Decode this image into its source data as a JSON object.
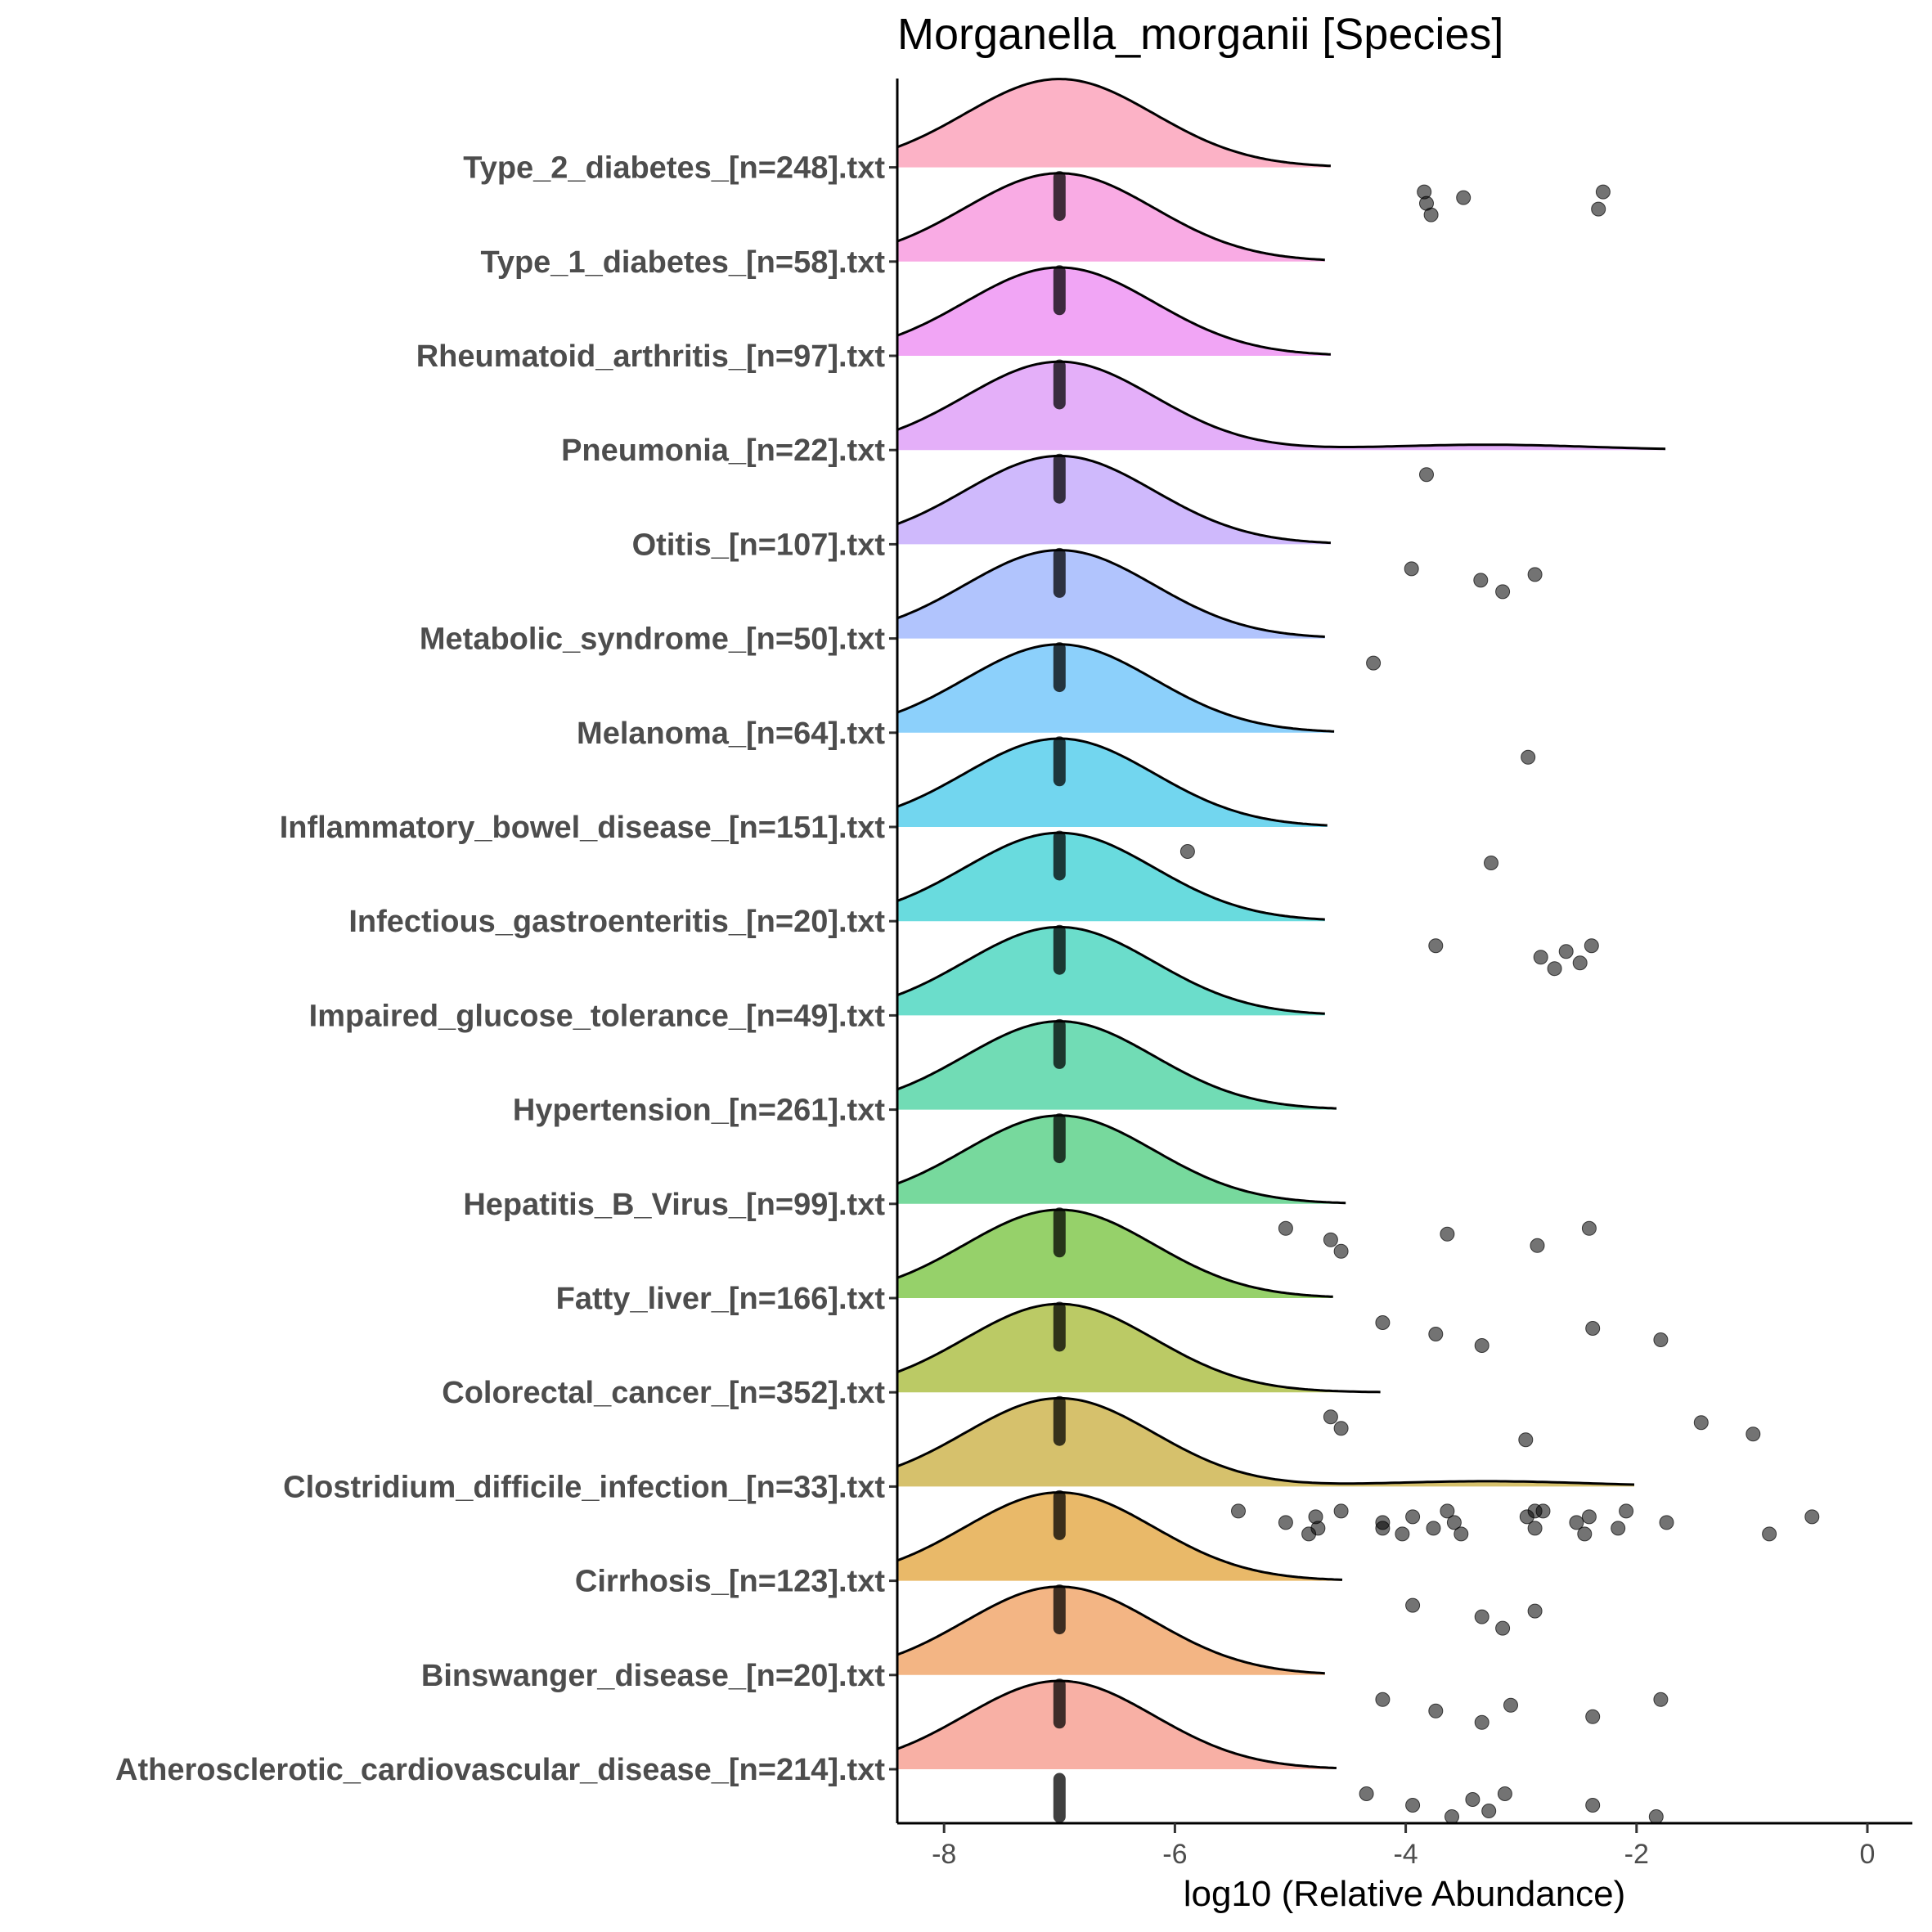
{
  "chart_data": {
    "type": "ridgeline",
    "title": "Morganella_morganii [Species]",
    "xlabel": "log10 (Relative Abundance)",
    "ylabel": "",
    "xlim": [
      -8.4,
      0.5
    ],
    "xticks": [
      -8,
      -6,
      -4,
      -2,
      0
    ],
    "baseline_value": -7.0,
    "grid": false,
    "legend": "none",
    "groups": [
      {
        "label": "Type_2_diabetes_[n=248].txt",
        "color": "#FB9FB8",
        "outliers": [
          -3.84,
          -3.82,
          -3.78,
          -3.5,
          -2.33,
          -2.29
        ],
        "bimodal": false,
        "tail_end": -4.65
      },
      {
        "label": "Type_1_diabetes_[n=58].txt",
        "color": "#F896DD",
        "outliers": [],
        "bimodal": false,
        "tail_end": -4.7
      },
      {
        "label": "Rheumatoid_arthritis_[n=97].txt",
        "color": "#EE8FF2",
        "outliers": [],
        "bimodal": false,
        "tail_end": -4.65
      },
      {
        "label": "Pneumonia_[n=22].txt",
        "color": "#DD9BF8",
        "outliers": [
          -3.82
        ],
        "bimodal": true,
        "tail_end": -1.75
      },
      {
        "label": "Otitis_[n=107].txt",
        "color": "#C3A8FB",
        "outliers": [
          -3.95,
          -3.35,
          -3.16,
          -2.88
        ],
        "bimodal": false,
        "tail_end": -4.65
      },
      {
        "label": "Metabolic_syndrome_[n=50].txt",
        "color": "#9EB5FC",
        "outliers": [
          -4.28
        ],
        "bimodal": false,
        "tail_end": -4.7
      },
      {
        "label": "Melanoma_[n=64].txt",
        "color": "#6FC4FA",
        "outliers": [
          -2.94
        ],
        "bimodal": false,
        "tail_end": -4.62
      },
      {
        "label": "Inflammatory_bowel_disease_[n=151].txt",
        "color": "#4FCCEB",
        "outliers": [
          -5.89,
          -3.26
        ],
        "bimodal": false,
        "tail_end": -4.68
      },
      {
        "label": "Infectious_gastroenteritis_[n=20].txt",
        "color": "#43D2D6",
        "outliers": [
          -3.74,
          -2.83,
          -2.71,
          -2.61,
          -2.49,
          -2.39
        ],
        "bimodal": false,
        "tail_end": -4.7
      },
      {
        "label": "Impaired_glucose_tolerance_[n=49].txt",
        "color": "#46D4BE",
        "outliers": [],
        "bimodal": false,
        "tail_end": -4.7
      },
      {
        "label": "Hypertension_[n=261].txt",
        "color": "#4DD3A3",
        "outliers": [],
        "bimodal": false,
        "tail_end": -4.6
      },
      {
        "label": "Hepatitis_B_Virus_[n=99].txt",
        "color": "#55CF84",
        "outliers": [
          -5.04,
          -4.65,
          -4.56,
          -3.64,
          -2.86,
          -2.41
        ],
        "bimodal": false,
        "tail_end": -4.52
      },
      {
        "label": "Fatty_liver_[n=166].txt",
        "color": "#7CC645",
        "outliers": [
          -4.2,
          -3.74,
          -3.34,
          -2.38,
          -1.79
        ],
        "bimodal": false,
        "tail_end": -4.63
      },
      {
        "label": "Colorectal_cancer_[n=352].txt",
        "color": "#AABD3F",
        "outliers": [
          -4.65,
          -4.56,
          -2.96,
          -1.44,
          -0.99
        ],
        "bimodal": false,
        "tail_end": -4.22
      },
      {
        "label": "Clostridium_difficile_infection_[n=33].txt",
        "color": "#CCB247",
        "outliers": [
          -5.45,
          -5.04,
          -4.84,
          -4.78,
          -4.76,
          -4.56,
          -4.2,
          -4.03,
          -3.94,
          -3.76,
          -3.64,
          -3.58,
          -3.52,
          -2.95,
          -2.88,
          -2.81,
          -2.52,
          -2.45,
          -2.41,
          -2.16,
          -2.09,
          -1.74,
          -0.85,
          -0.48,
          -4.2,
          -2.88
        ],
        "bimodal": true,
        "tail_end": -2.02
      },
      {
        "label": "Cirrhosis_[n=123].txt",
        "color": "#E4A843",
        "outliers": [
          -3.94,
          -3.34,
          -3.16,
          -2.88
        ],
        "bimodal": false,
        "tail_end": -4.55
      },
      {
        "label": "Binswanger_disease_[n=20].txt",
        "color": "#F0A265",
        "outliers": [
          -4.2,
          -3.74,
          -3.34,
          -3.09,
          -2.38,
          -1.79
        ],
        "bimodal": false,
        "tail_end": -4.7
      },
      {
        "label": "Atherosclerotic_cardiovascular_disease_[n=214].txt",
        "color": "#F69C8E",
        "outliers": [
          -4.34,
          -3.94,
          -3.6,
          -3.42,
          -3.28,
          -3.14,
          -2.38,
          -1.83
        ],
        "bimodal": false,
        "tail_end": -4.6
      }
    ]
  }
}
